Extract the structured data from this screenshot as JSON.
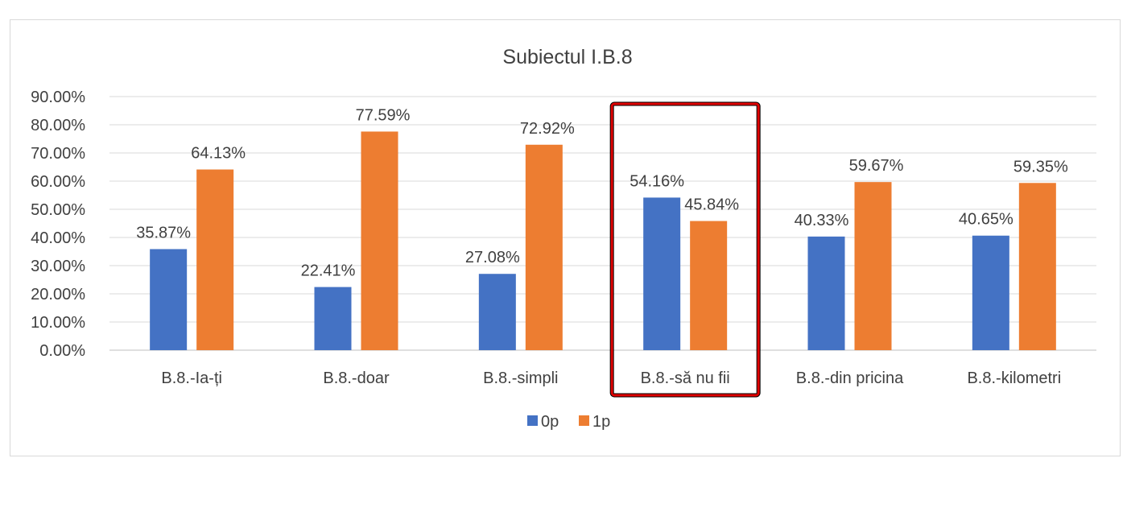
{
  "chart_data": {
    "type": "bar",
    "title": "Subiectul I.B.8",
    "xlabel": "",
    "ylabel": "",
    "ylim": [
      0,
      90
    ],
    "y_ticks": [
      "0.00%",
      "10.00%",
      "20.00%",
      "30.00%",
      "40.00%",
      "50.00%",
      "60.00%",
      "70.00%",
      "80.00%",
      "90.00%"
    ],
    "y_tick_values": [
      0,
      10,
      20,
      30,
      40,
      50,
      60,
      70,
      80,
      90
    ],
    "categories": [
      "B.8.-Ia-ți",
      "B.8.-doar",
      "B.8.-simpli",
      "B.8.-să nu fii",
      "B.8.-din pricina",
      "B.8.-kilometri"
    ],
    "series": [
      {
        "name": "0p",
        "color": "#4472c4",
        "values": [
          35.87,
          22.41,
          27.08,
          54.16,
          40.33,
          40.65
        ],
        "labels": [
          "35.87%",
          "22.41%",
          "27.08%",
          "54.16%",
          "40.33%",
          "40.65%"
        ]
      },
      {
        "name": "1p",
        "color": "#ed7d31",
        "values": [
          64.13,
          77.59,
          72.92,
          45.84,
          59.67,
          59.35
        ],
        "labels": [
          "64.13%",
          "77.59%",
          "72.92%",
          "45.84%",
          "59.67%",
          "59.35%"
        ]
      }
    ],
    "grid": true,
    "legend": "bottom",
    "highlight": {
      "category": "B.8.-să nu fii",
      "color": "#e00000"
    }
  }
}
